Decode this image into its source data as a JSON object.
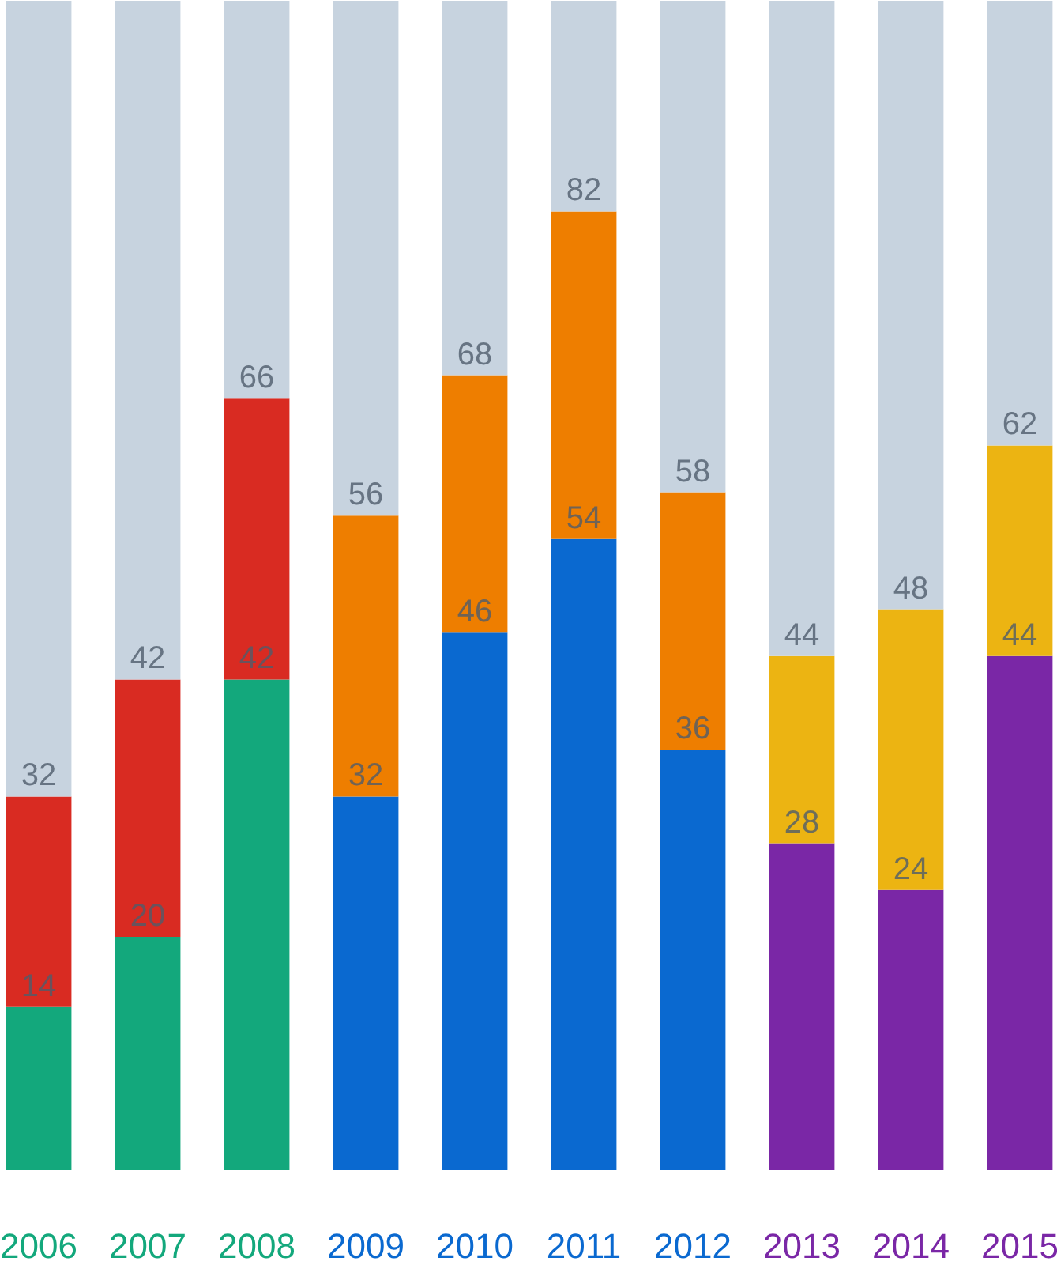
{
  "chart_data": {
    "type": "bar",
    "stacked": true,
    "categories": [
      "2006",
      "2007",
      "2008",
      "2009",
      "2010",
      "2011",
      "2012",
      "2013",
      "2014",
      "2015"
    ],
    "series": [
      {
        "colors": [
          "#13a87c",
          "#13a87c",
          "#13a87c",
          "#0a69d0",
          "#0a69d0",
          "#0a69d0",
          "#0a69d0",
          "#7a27a6",
          "#7a27a6",
          "#7a27a6"
        ],
        "values": [
          14,
          20,
          42,
          32,
          46,
          54,
          36,
          28,
          24,
          44
        ],
        "value_labels": [
          "14",
          "20",
          "42",
          "32",
          "46",
          "54",
          "36",
          "28",
          "24",
          "44"
        ]
      },
      {
        "colors": [
          "#d92b22",
          "#d92b22",
          "#d92b22",
          "#ee7e00",
          "#ee7e00",
          "#ee7e00",
          "#ee7e00",
          "#ecb412",
          "#ecb412",
          "#ecb412"
        ],
        "values": [
          18,
          22,
          24,
          24,
          22,
          28,
          22,
          16,
          24,
          18
        ]
      },
      {
        "color": "#c7d3df",
        "values": [
          68,
          58,
          34,
          44,
          32,
          18,
          42,
          56,
          52,
          38
        ]
      }
    ],
    "annotations": [
      {
        "text": "32",
        "x": "2006",
        "y": 32
      },
      {
        "text": "42",
        "x": "2007",
        "y": 42
      },
      {
        "text": "66",
        "x": "2008",
        "y": 66
      },
      {
        "text": "56",
        "x": "2009",
        "y": 56
      },
      {
        "text": "68",
        "x": "2010",
        "y": 68
      },
      {
        "text": "82",
        "x": "2011",
        "y": 82
      },
      {
        "text": "58",
        "x": "2012",
        "y": 58
      },
      {
        "text": "44",
        "x": "2013",
        "y": 44
      },
      {
        "text": "48",
        "x": "2014",
        "y": 48
      },
      {
        "text": "62",
        "x": "2015",
        "y": 62
      }
    ],
    "grid": false,
    "tick_labels": "x"
  }
}
